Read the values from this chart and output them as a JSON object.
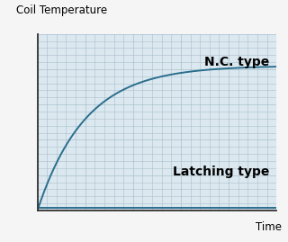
{
  "title": "Coil Temperature",
  "xlabel": "Time",
  "background_color": "#f5f5f5",
  "plot_bg_color": "#dce8f0",
  "nc_label": "N.C. type",
  "latching_label": "Latching type",
  "line_color": "#2a6e8c",
  "line_width": 1.4,
  "nc_asymptote": 0.82,
  "latching_flat": 0.015,
  "x_max": 10,
  "title_fontsize": 8.5,
  "xlabel_fontsize": 8.5,
  "annotation_fontsize": 10,
  "grid_color": "#a8c0cc",
  "grid_linewidth": 0.4,
  "major_grid_color": "#a8c0cc",
  "major_grid_linewidth": 0.5
}
